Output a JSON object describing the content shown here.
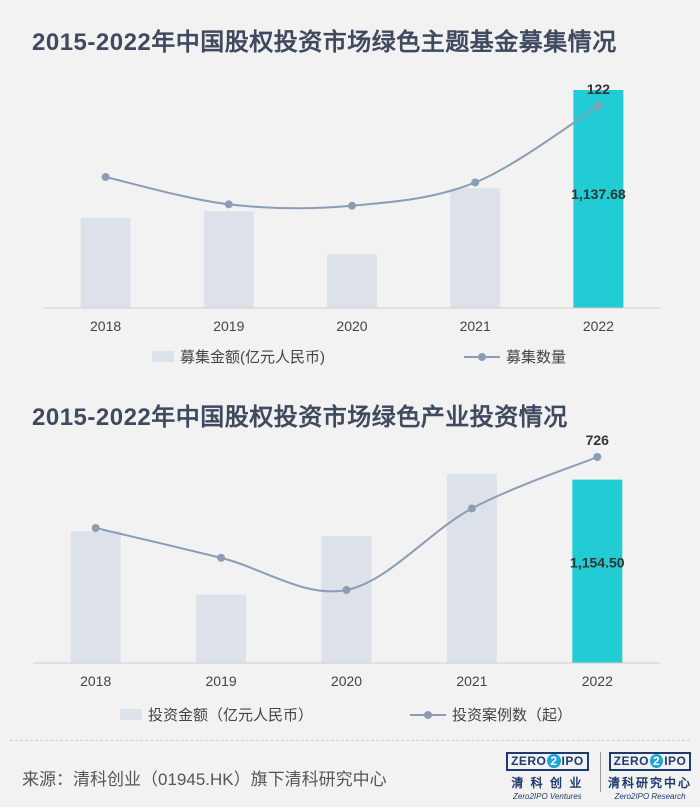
{
  "chart_data": [
    {
      "type": "bar",
      "title": "2015-2022年中国股权投资市场绿色主题基金募集情况",
      "categories": [
        "2018",
        "2019",
        "2020",
        "2021",
        "2022"
      ],
      "series": [
        {
          "name": "募集金额(亿元人民币)",
          "kind": "bar",
          "values": [
            470,
            505,
            280,
            625,
            1137.68
          ],
          "labels": [
            null,
            null,
            null,
            null,
            "1,137.68"
          ]
        },
        {
          "name": "募集数量",
          "kind": "line",
          "values": [
            70,
            50,
            49,
            66,
            122
          ],
          "labels": [
            null,
            null,
            null,
            null,
            "122"
          ]
        }
      ],
      "highlight_index": 4
    },
    {
      "type": "bar",
      "title": "2015-2022年中国股权投资市场绿色产业投资情况",
      "categories": [
        "2018",
        "2019",
        "2020",
        "2021",
        "2022"
      ],
      "series": [
        {
          "name": "投资金额（亿元人民币）",
          "kind": "bar",
          "values": [
            830,
            430,
            800,
            1190,
            1154.5
          ],
          "labels": [
            null,
            null,
            null,
            null,
            "1,154.50"
          ]
        },
        {
          "name": "投资案例数（起）",
          "kind": "line",
          "values": [
            483,
            381,
            271,
            550,
            726
          ],
          "labels": [
            null,
            null,
            null,
            null,
            "726"
          ]
        }
      ],
      "highlight_index": 4
    }
  ],
  "colors": {
    "bar": "#dde1ea",
    "highlight": "#22ccd4",
    "line": "#8a9db5",
    "title": "#404a5e"
  },
  "footer": {
    "source": "来源：清科创业（01945.HK）旗下清科研究中心",
    "logo1": {
      "mark": [
        "ZERO",
        "2",
        "IPO"
      ],
      "cn": "清 科 创 业",
      "en": "Zero2IPO Ventures"
    },
    "logo2": {
      "mark": [
        "ZERO",
        "2",
        "IPO"
      ],
      "cn": "清科研究中心",
      "en": "Zero2IPO Research"
    }
  }
}
